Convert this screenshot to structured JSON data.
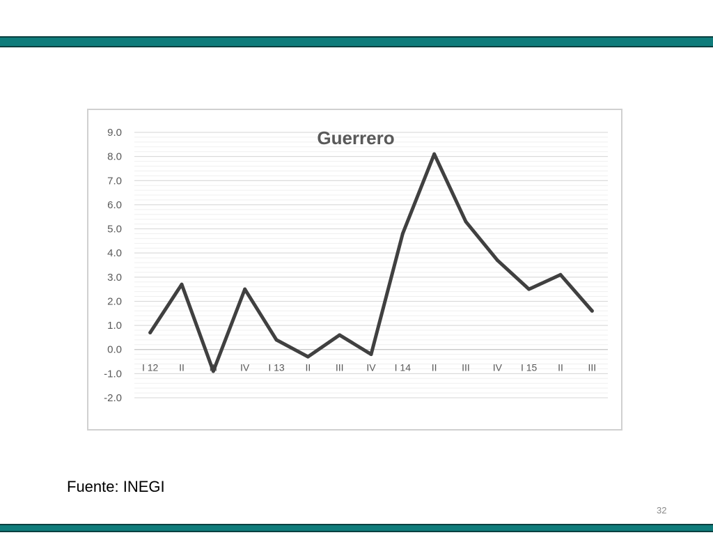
{
  "slide": {
    "source": "Fuente: INEGI",
    "page_number": "32",
    "accent_color": "#0f7c7b"
  },
  "chart_data": {
    "type": "line",
    "title": "Guerrero",
    "xlabel": "",
    "ylabel": "",
    "categories": [
      "I 12",
      "II",
      "III",
      "IV",
      "I 13",
      "II",
      "III",
      "IV",
      "I 14",
      "II",
      "III",
      "IV",
      "I 15",
      "II",
      "III"
    ],
    "series": [
      {
        "values": [
          0.7,
          2.7,
          -0.9,
          2.5,
          0.4,
          -0.3,
          0.6,
          -0.2,
          4.8,
          8.1,
          5.3,
          3.7,
          2.5,
          3.1,
          1.6
        ],
        "color": "#404040"
      }
    ],
    "ylim": [
      -2.0,
      9.0
    ],
    "yticks": [
      "-2.0",
      "-1.0",
      "0.0",
      "1.0",
      "2.0",
      "3.0",
      "4.0",
      "5.0",
      "6.0",
      "7.0",
      "8.0",
      "9.0"
    ],
    "grid": true,
    "legend": "none"
  }
}
